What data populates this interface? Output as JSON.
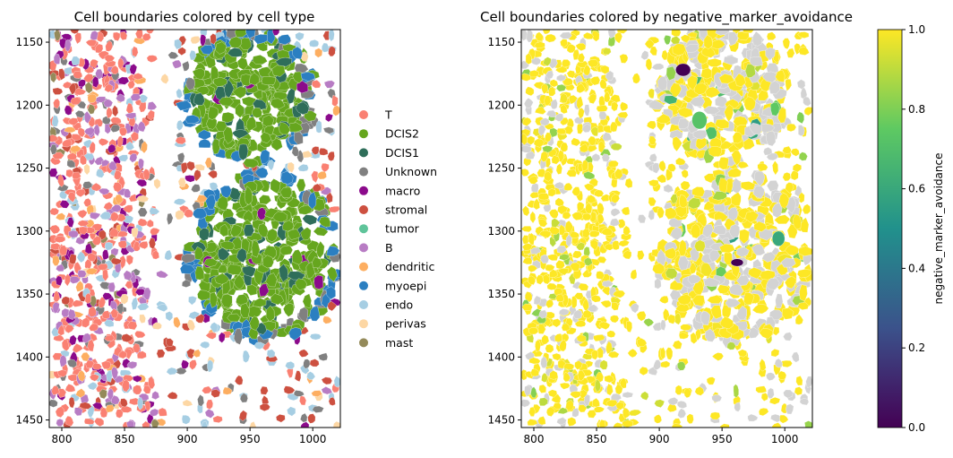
{
  "chart_data": [
    {
      "type": "scatter",
      "title": "Cell boundaries colored by cell type",
      "xlabel": "",
      "ylabel": "",
      "xlim": [
        790,
        1022
      ],
      "ylim": [
        1456,
        1140
      ],
      "x_ticks": [
        800,
        850,
        900,
        950,
        1000
      ],
      "y_ticks": [
        1150,
        1200,
        1250,
        1300,
        1350,
        1400,
        1450
      ],
      "grid": false,
      "legend_position": "right",
      "categories": [
        {
          "name": "T",
          "color": "#fa8072"
        },
        {
          "name": "DCIS2",
          "color": "#66a61e"
        },
        {
          "name": "DCIS1",
          "color": "#2f6e5a"
        },
        {
          "name": "Unknown",
          "color": "#808080"
        },
        {
          "name": "macro",
          "color": "#8b0a8b"
        },
        {
          "name": "stromal",
          "color": "#cd5040"
        },
        {
          "name": "tumor",
          "color": "#5fc49a"
        },
        {
          "name": "B",
          "color": "#b87cc4"
        },
        {
          "name": "dendritic",
          "color": "#fdae61"
        },
        {
          "name": "myoepi",
          "color": "#2b7fc1"
        },
        {
          "name": "endo",
          "color": "#a6cee3"
        },
        {
          "name": "perivas",
          "color": "#fdd7a4"
        },
        {
          "name": "mast",
          "color": "#948a5a"
        }
      ],
      "regions": [
        {
          "category": "DCIS2",
          "shape": "ellipse",
          "cx": 950,
          "cy": 1193,
          "rx": 52,
          "ry": 52
        },
        {
          "category": "DCIS2",
          "shape": "ellipse",
          "cx": 960,
          "cy": 1320,
          "rx": 60,
          "ry": 66
        },
        {
          "category": "T",
          "shape": "ellipse",
          "cx": 838,
          "cy": 1220,
          "rx": 32,
          "ry": 72
        },
        {
          "category": "T",
          "shape": "ellipse",
          "cx": 833,
          "cy": 1332,
          "rx": 30,
          "ry": 50
        },
        {
          "category": "T",
          "shape": "ellipse",
          "cx": 845,
          "cy": 1420,
          "rx": 35,
          "ry": 28
        }
      ]
    },
    {
      "type": "scatter",
      "title": "Cell boundaries colored by negative_marker_avoidance",
      "xlabel": "",
      "ylabel": "",
      "xlim": [
        790,
        1022
      ],
      "ylim": [
        1456,
        1140
      ],
      "x_ticks": [
        800,
        850,
        900,
        950,
        1000
      ],
      "y_ticks": [
        1150,
        1200,
        1250,
        1300,
        1350,
        1400,
        1450
      ],
      "grid": false,
      "colorbar": {
        "label": "negative_marker_avoidance",
        "min": 0.0,
        "max": 1.0,
        "ticks": [
          "0.0",
          "0.2",
          "0.4",
          "0.6",
          "0.8",
          "1.0"
        ],
        "colormap": "viridis",
        "colors": [
          "#440154",
          "#3b528b",
          "#21918c",
          "#5ec962",
          "#fde725"
        ]
      },
      "missing_color": "#d3d3d3",
      "value_regions": [
        {
          "value": 1.0,
          "cx": 950,
          "cy": 1193,
          "rx": 52,
          "ry": 52
        },
        {
          "value": 1.0,
          "cx": 960,
          "cy": 1320,
          "rx": 60,
          "ry": 66
        },
        {
          "value": 0.0,
          "cx": 919,
          "cy": 1172,
          "rx": 6,
          "ry": 5
        },
        {
          "value": 0.0,
          "cx": 962,
          "cy": 1325,
          "rx": 5,
          "ry": 3
        },
        {
          "value": 0.72,
          "cx": 932,
          "cy": 1212,
          "rx": 6,
          "ry": 7
        },
        {
          "value": 0.6,
          "cx": 995,
          "cy": 1306,
          "rx": 5,
          "ry": 6
        }
      ]
    }
  ]
}
